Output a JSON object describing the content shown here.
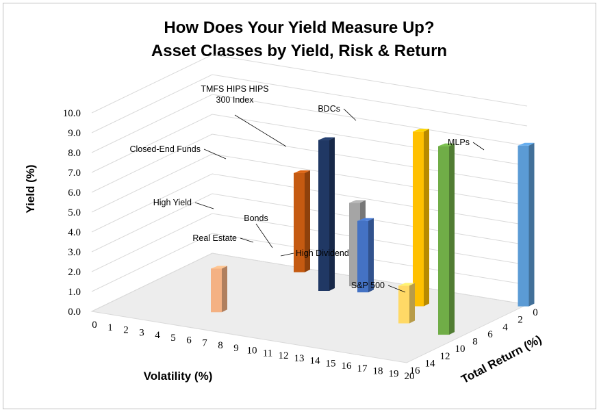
{
  "chart_data": {
    "type": "bar",
    "subtype": "3d-column",
    "title_lines": [
      "How Does Your Yield Measure Up?",
      "Asset Classes by Yield, Risk & Return"
    ],
    "xlabel": "Volatility (%)",
    "ylabel": "Yield (%)",
    "zlabel": "Total Return (%)",
    "x_ticks": [
      "0",
      "1",
      "2",
      "3",
      "4",
      "5",
      "6",
      "7",
      "8",
      "9",
      "10",
      "11",
      "12",
      "13",
      "14",
      "15",
      "16",
      "17",
      "18",
      "19",
      "20"
    ],
    "y_ticks": [
      "0.0",
      "1.0",
      "2.0",
      "3.0",
      "4.0",
      "5.0",
      "6.0",
      "7.0",
      "8.0",
      "9.0",
      "10.0"
    ],
    "z_ticks": [
      "0",
      "2",
      "4",
      "6",
      "8",
      "10",
      "12",
      "14",
      "16"
    ],
    "xlim": [
      0,
      20
    ],
    "ylim": [
      0,
      10
    ],
    "zlim": [
      0,
      16
    ],
    "grid": true,
    "series": [
      {
        "name": "High Yield",
        "volatility": 6,
        "total_return": 1,
        "yield": 5.0,
        "color": "#c55a11",
        "label": "High Yield"
      },
      {
        "name": "Closed-End Funds",
        "volatility": 9,
        "total_return": 4,
        "yield": 7.6,
        "color": "#203864",
        "label": "Closed-End Funds"
      },
      {
        "name": "TMFS HIPS HIPS 300 Index",
        "volatility": 15,
        "total_return": 4,
        "yield": 8.8,
        "color": "#ffc000",
        "label_lines": [
          "TMFS HIPS HIPS",
          "300 Index"
        ]
      },
      {
        "name": "BDCs",
        "volatility": 19,
        "total_return": 9,
        "yield": 9.5,
        "color": "#70ad47",
        "label": "BDCs"
      },
      {
        "name": "MLPs",
        "volatility": 20,
        "total_return": 0.5,
        "yield": 8.1,
        "color": "#5b9bd5",
        "label": "MLPs"
      },
      {
        "name": "Real Estate",
        "volatility": 10,
        "total_return": 2,
        "yield": 4.2,
        "color": "#a5a5a5",
        "label": "Real Estate"
      },
      {
        "name": "Bonds",
        "volatility": 6,
        "total_return": 12,
        "yield": 2.2,
        "color": "#f4b183",
        "label": "Bonds"
      },
      {
        "name": "High Dividend",
        "volatility": 11,
        "total_return": 3,
        "yield": 3.6,
        "color": "#4472c4",
        "label": "High Dividend"
      },
      {
        "name": "S&P 500",
        "volatility": 16,
        "total_return": 8,
        "yield": 1.9,
        "color": "#ffd966",
        "label": "S&P 500"
      }
    ]
  }
}
